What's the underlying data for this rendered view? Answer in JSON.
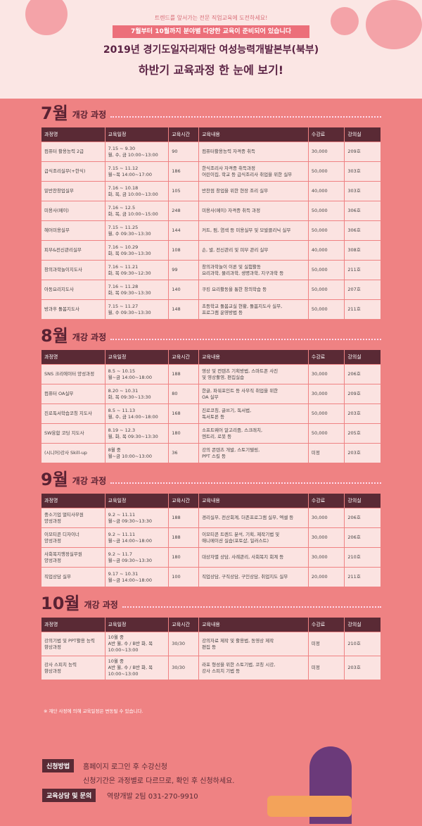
{
  "header": {
    "tagline": "트렌드를 앞서가는 전문 직업교육에 도전하세요!",
    "banner": "7월부터 10월까지 분야별 다양한 교육이 준비되어 있습니다",
    "title": "2019년 경기도일자리재단 여성능력개발본부(북부)",
    "subtitle": "하반기 교육과정 한 눈에 보기!"
  },
  "sections": [
    {
      "month": "7월",
      "label": "개강 과정",
      "columns": [
        "과정명",
        "교육일정",
        "교육시간",
        "교육내용",
        "수강료",
        "강의실"
      ],
      "rows": [
        [
          "컴퓨터 활용능력 2급",
          "7.15 ~ 9.30\n월, 수, 금 10:00~13:00",
          "90",
          "컴퓨터활용능력 자격증 취득",
          "30,000",
          "209호"
        ],
        [
          "급식조리실무(+한식)",
          "7.15 ~ 11.12\n월~목 14:00~17:00",
          "186",
          "한식조리사 자격증 취득과정\n어린이집, 학교 등 급식조리사 취업을 위한 실무",
          "50,000",
          "303호"
        ],
        [
          "밑반찬창업실무",
          "7.16 ~ 10.18\n화, 목, 금 10:00~13:00",
          "105",
          "반찬점 창업을 위한 현장 조리 실무",
          "40,000",
          "303호"
        ],
        [
          "미용사(메이)",
          "7.16 ~ 12.5\n화, 목, 금 10:00~15:00",
          "248",
          "미용사(메이) 자격증 취득 과정",
          "50,000",
          "306호"
        ],
        [
          "헤어미용실무",
          "7.15 ~ 11.25\n월, 수 09:30~13:30",
          "144",
          "커트, 펌, 염색 등 미용실무 및 모발클리닉 실무",
          "50,000",
          "306호"
        ],
        [
          "피부&전신관리실무",
          "7.16 ~ 10.29\n화, 목 09:30~13:30",
          "108",
          "손, 발, 전신관리 및 피부 관리 실무",
          "40,000",
          "308호"
        ],
        [
          "창의과학놀이지도사",
          "7.16 ~ 11.21\n화, 목 09:30~12:30",
          "99",
          "창의과학놀이 이론 및 실험활동\n요리과학, 물리과학, 생명과학, 지구과학 등",
          "50,000",
          "211호"
        ],
        [
          "아동요리지도사",
          "7.16 ~ 11.28\n화, 목 09:30~13:30",
          "140",
          "쿠킹 요리활동을 통한 창의학습 등",
          "50,000",
          "207호"
        ],
        [
          "방과후 돌봄지도사",
          "7.15 ~ 11.27\n월, 수 09:30~13:30",
          "148",
          "초등학교 돌봄교실 현황, 돌봄지도사 실무,\n프로그램 운영방법 등",
          "50,000",
          "211호"
        ]
      ]
    },
    {
      "month": "8월",
      "label": "개강 과정",
      "columns": [
        "과정명",
        "교육일정",
        "교육시간",
        "교육내용",
        "수강료",
        "강의실"
      ],
      "rows": [
        [
          "SNS 크리에이터 양성과정",
          "8.5 ~ 10.15\n월~금 14:00~18:00",
          "188",
          "영상 및 컨텐츠 기획방법, 스마트폰 사진\n및 영상촬영, 편집실습",
          "30,000",
          "206호"
        ],
        [
          "컴퓨터 OA실무",
          "8.20 ~ 10.31\n화, 목 09:30~13:30",
          "80",
          "한글, 파워포인트 등 사무직 취업을 위한\nOA 실무",
          "30,000",
          "209호"
        ],
        [
          "진로독서학습코칭 지도사",
          "8.5 ~ 11.13\n월, 수, 금 14:00~18:00",
          "168",
          "진로코칭, 글쓰기, 독서법,\n독서토론 등",
          "50,000",
          "203호"
        ],
        [
          "SW융합 코딩 지도사",
          "8.19 ~ 12.3\n월, 화, 목 09:30~13:30",
          "180",
          "소프트웨어 알고리즘, 스크래치,\n엔트리, 로봇 등",
          "50,000",
          "205호"
        ],
        [
          "(시니어)강사 Skill-up",
          "8월 중\n월~금 10:00~13:00",
          "36",
          "강의 콘텐츠 개발, 스토기텔링,\nPPT 스킬 등",
          "미정",
          "203호"
        ]
      ]
    },
    {
      "month": "9월",
      "label": "개강 과정",
      "columns": [
        "과정명",
        "교육일정",
        "교육시간",
        "교육내용",
        "수강료",
        "강의실"
      ],
      "rows": [
        [
          "중소기업 멀티사무원\n양성과정",
          "9.2 ~ 11.11\n월~금 09:30~13:30",
          "188",
          "경리실무, 전산회계, 더존프로그램 실무, 엑셀 등",
          "30,000",
          "206호"
        ],
        [
          "이모티콘 디자이너\n양성과정",
          "9.2 ~ 11.11\n월~금 14:00~18:00",
          "188",
          "이모티콘 트렌드 분석, 기획, 제작기법 및\n애니메이션 실습(포토샵, 일러스트)",
          "30,000",
          "206호"
        ],
        [
          "사회복지행정실무원\n양성과정",
          "9.2 ~ 11.7\n월~금 09:30~13:30",
          "180",
          "대상자별 상담, 사례관리, 사회복지 회계 등",
          "30,000",
          "210호"
        ],
        [
          "직업상담 실무",
          "9.17 ~ 10.31\n월~금 14:00~18:00",
          "100",
          "직업상담, 구직상담, 구인상담, 취업지도 실무",
          "20,000",
          "211호"
        ]
      ]
    },
    {
      "month": "10월",
      "label": "개강 과정",
      "columns": [
        "과정명",
        "교육일정",
        "교육시간",
        "교육내용",
        "수강료",
        "강의실"
      ],
      "rows": [
        [
          "강의기법 및 PPT활용 능력\n향상과정",
          "10월 중\nA반 월, 수 / B반 화, 목\n10:00~13:00",
          "30/30",
          "강의자료 제작 및 활용법, 동영상 제작\n편집 등",
          "미정",
          "210호"
        ],
        [
          "강사 스피치 능력\n향상과정",
          "10월 중\nA반 월, 수 / B반 화, 목\n10:00~13:00",
          "30/30",
          "라포 형성을 위한 스토기법, 코칭 시강,\n강사 스피치 기법 등",
          "미정",
          "203호"
        ]
      ]
    }
  ],
  "note": "※ 재단 사정에 의해 교육일정은 변동될 수 있습니다.",
  "footer": {
    "apply_label": "신청방법",
    "apply_text": "홈페이지 로그인 후 수강신청",
    "apply_note": "신청기간은 과정별로 다르므로, 확인 후 신청하세요.",
    "contact_label": "교육상담 및 문의",
    "contact_text": "역량개발 2팀 031-270-9910"
  }
}
